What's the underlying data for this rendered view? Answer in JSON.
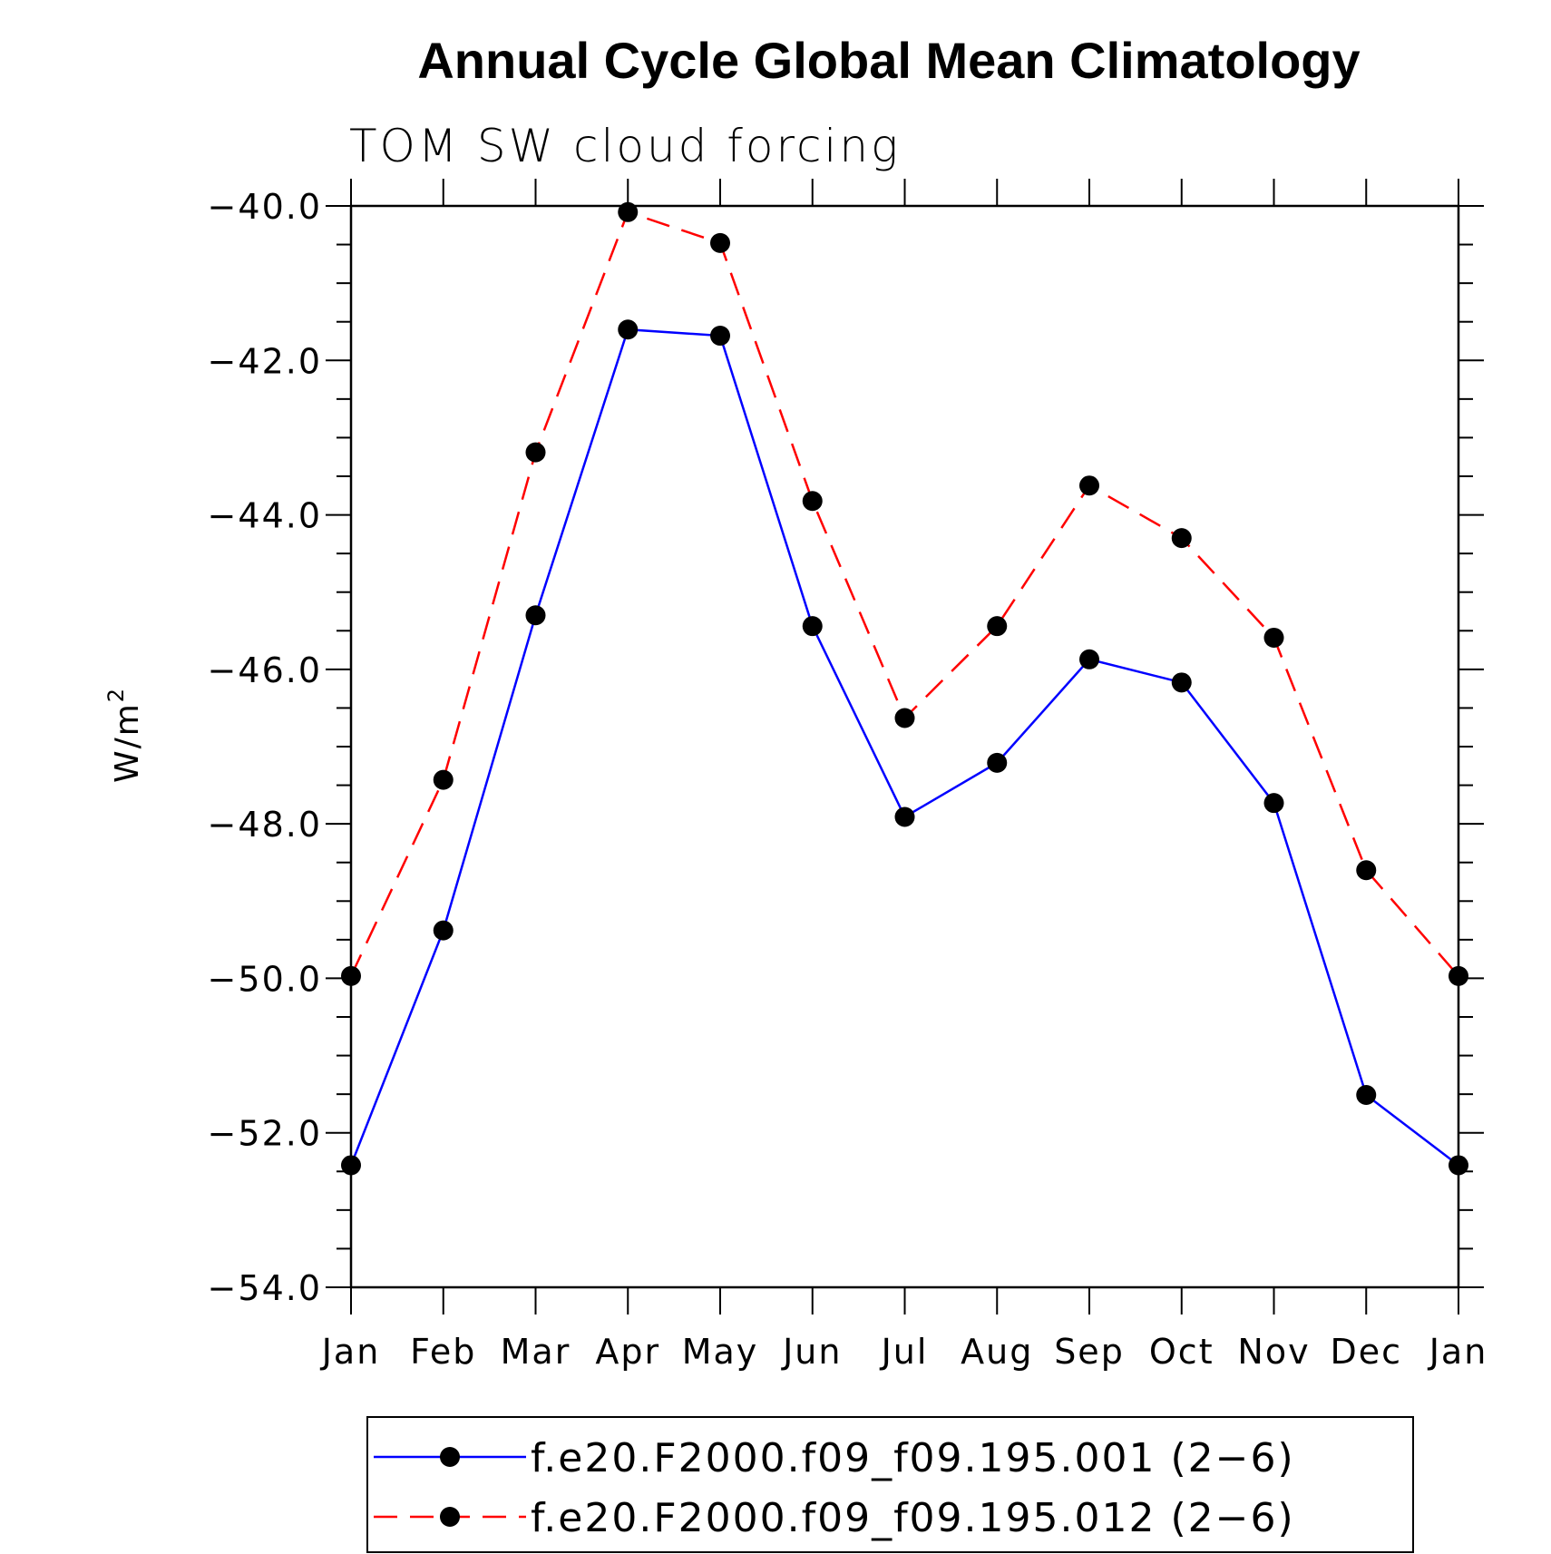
{
  "chart_data": {
    "type": "line",
    "title": "Annual Cycle Global Mean Climatology",
    "subtitle": "TOM SW cloud forcing",
    "ylabel_base": "W/m",
    "ylabel_sup": "2",
    "categories": [
      "Jan",
      "Feb",
      "Mar",
      "Apr",
      "May",
      "Jun",
      "Jul",
      "Aug",
      "Sep",
      "Oct",
      "Nov",
      "Dec",
      "Jan"
    ],
    "ylim": [
      -54.0,
      -40.0
    ],
    "yticks": [
      -40.0,
      -42.0,
      -44.0,
      -46.0,
      -48.0,
      -50.0,
      -52.0,
      -54.0
    ],
    "ytick_labels": [
      "−40.0",
      "−42.0",
      "−44.0",
      "−46.0",
      "−48.0",
      "−50.0",
      "−52.0",
      "−54.0"
    ],
    "series": [
      {
        "name": "f.e20.F2000.f09_f09.195.001 (2−6)",
        "color": "#0000ff",
        "dash": "solid",
        "values": [
          -52.42,
          -49.38,
          -45.3,
          -41.6,
          -41.68,
          -45.44,
          -47.91,
          -47.21,
          -45.87,
          -46.17,
          -47.73,
          -51.51,
          -52.42
        ]
      },
      {
        "name": "f.e20.F2000.f09_f09.195.012 (2−6)",
        "color": "#ff0000",
        "dash": "dashed",
        "values": [
          -49.97,
          -47.43,
          -43.19,
          -40.08,
          -40.48,
          -43.82,
          -46.63,
          -45.44,
          -43.62,
          -44.3,
          -45.59,
          -48.6,
          -49.97
        ]
      }
    ],
    "legend_position": "bottom"
  }
}
